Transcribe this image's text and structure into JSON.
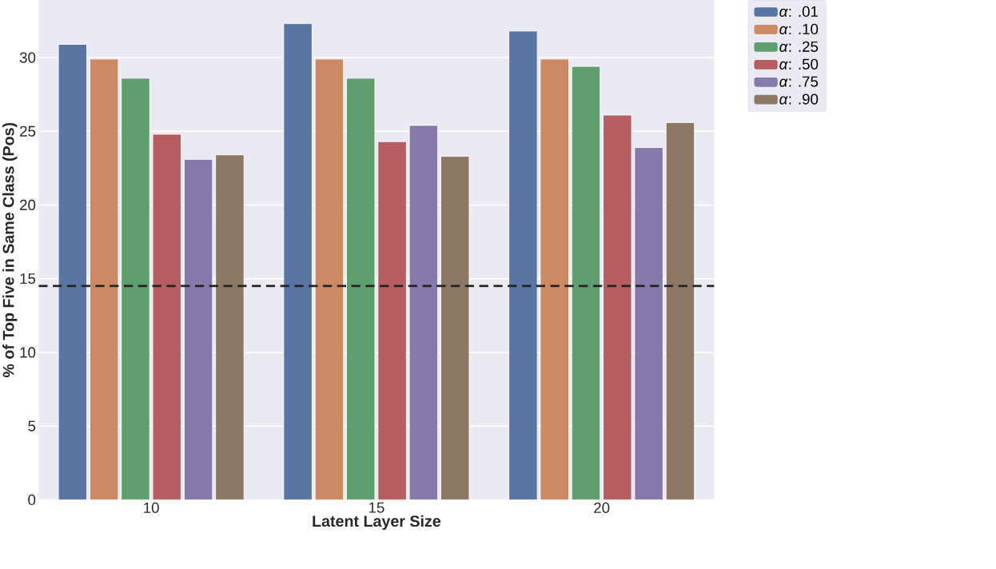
{
  "chart_data": {
    "type": "bar",
    "xlabel": "Latent Layer Size",
    "ylabel": "% of Top Five in Same Class (Pos)",
    "categories": [
      "10",
      "15",
      "20"
    ],
    "series": [
      {
        "name": "*α*: .01",
        "color": "#5975a4",
        "values": [
          30.9,
          32.3,
          31.8
        ]
      },
      {
        "name": "*α*: .10",
        "color": "#cc8963",
        "values": [
          29.9,
          29.9,
          29.9
        ]
      },
      {
        "name": "*α*: .25",
        "color": "#5f9e6e",
        "values": [
          28.6,
          28.6,
          29.4
        ]
      },
      {
        "name": "*α*: .50",
        "color": "#b55d60",
        "values": [
          24.8,
          24.3,
          26.1
        ]
      },
      {
        "name": "*α*: .75",
        "color": "#857aab",
        "values": [
          23.1,
          25.4,
          23.9
        ]
      },
      {
        "name": "*α*: .90",
        "color": "#8d7866",
        "values": [
          23.4,
          23.3,
          25.6
        ]
      }
    ],
    "ylim": [
      0,
      33.9
    ],
    "yticks": [
      0,
      5,
      10,
      15,
      20,
      25,
      30
    ],
    "grid": "y",
    "legend": "top right",
    "ref_lines": [
      {
        "axis": "y",
        "value": 14.5,
        "color": "#222222",
        "line_style": "dashed"
      }
    ]
  }
}
